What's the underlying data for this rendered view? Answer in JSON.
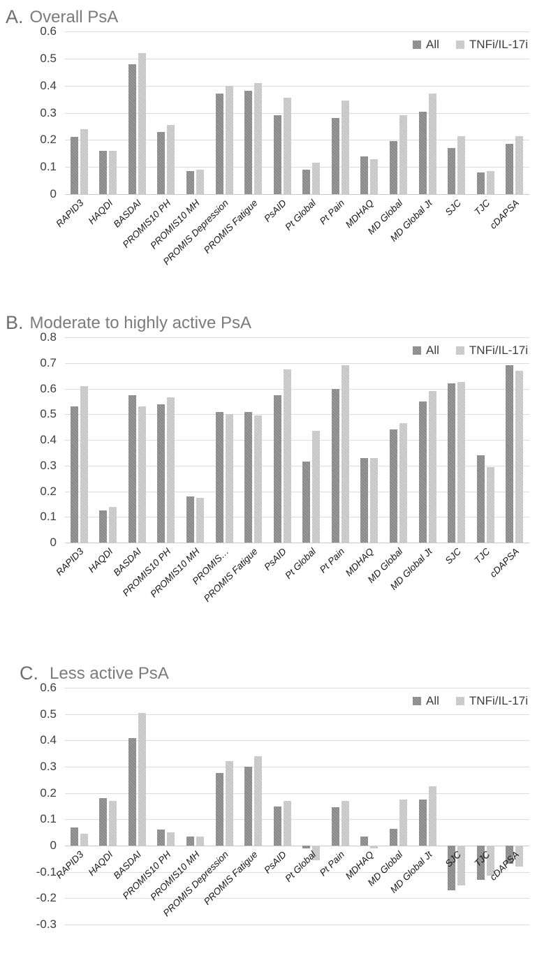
{
  "figure": {
    "background": "#ffffff",
    "bar_color_all": "#8c8c8c",
    "bar_color_tnfi": "#c5c5c5",
    "gridline_color": "#dcdcdc"
  },
  "legend": {
    "items": [
      {
        "label": "All",
        "swatch": "all"
      },
      {
        "label": "TNFi/IL-17i",
        "swatch": "tnfi"
      }
    ]
  },
  "chart_data": [
    {
      "type": "bar",
      "panel_label": "A.",
      "title": "Overall PsA",
      "ylim": [
        0,
        0.6
      ],
      "grid": true,
      "legend_position": "top-right",
      "yticks": [
        {
          "v": 0.6,
          "label": "0.6"
        },
        {
          "v": 0.5,
          "label": "0.5"
        },
        {
          "v": 0.4,
          "label": "0.4"
        },
        {
          "v": 0.3,
          "label": "0.3"
        },
        {
          "v": 0.2,
          "label": "0.2"
        },
        {
          "v": 0.1,
          "label": "0.1"
        },
        {
          "v": 0,
          "label": "0"
        }
      ],
      "categories": [
        "RAPID3",
        "HAQDI",
        "BASDAI",
        "PROMIS10 PH",
        "PROMIS10 MH",
        "PROMIS Depression",
        "PROMIS Fatigue",
        "PsAID",
        "Pt Global",
        "Pt Pain",
        "MDHAQ",
        "MD Global",
        "MD Global Jt",
        "SJC",
        "TJC",
        "cDAPSA"
      ],
      "series": [
        {
          "name": "All",
          "values": [
            0.21,
            0.16,
            0.48,
            0.23,
            0.085,
            0.37,
            0.38,
            0.29,
            0.09,
            0.28,
            0.14,
            0.195,
            0.305,
            0.17,
            0.08,
            0.185
          ]
        },
        {
          "name": "TNFi/IL-17i",
          "values": [
            0.24,
            0.16,
            0.52,
            0.255,
            0.09,
            0.4,
            0.41,
            0.355,
            0.115,
            0.345,
            0.13,
            0.29,
            0.37,
            0.215,
            0.085,
            0.215
          ]
        }
      ]
    },
    {
      "type": "bar",
      "panel_label": "B.",
      "title": "Moderate to highly active PsA",
      "ylim": [
        0,
        0.8
      ],
      "grid": true,
      "legend_position": "top-right",
      "yticks": [
        {
          "v": 0.8,
          "label": "0.8"
        },
        {
          "v": 0.7,
          "label": "0.7"
        },
        {
          "v": 0.6,
          "label": "0.6"
        },
        {
          "v": 0.5,
          "label": "0.5"
        },
        {
          "v": 0.4,
          "label": "0.4"
        },
        {
          "v": 0.3,
          "label": "0.3"
        },
        {
          "v": 0.2,
          "label": "0.2"
        },
        {
          "v": 0.1,
          "label": "0.1"
        },
        {
          "v": 0,
          "label": "0"
        }
      ],
      "categories": [
        "RAPID3",
        "HAQDI",
        "BASDAI",
        "PROMIS10 PH",
        "PROMIS10 MH",
        "PROMIS…",
        "PROMIS Fatigue",
        "PsAID",
        "Pt Global",
        "Pt Pain",
        "MDHAQ",
        "MD Global",
        "MD Global Jt",
        "SJC",
        "TJC",
        "cDAPSA"
      ],
      "series": [
        {
          "name": "All",
          "values": [
            0.53,
            0.125,
            0.575,
            0.54,
            0.18,
            0.51,
            0.51,
            0.575,
            0.315,
            0.6,
            0.33,
            0.44,
            0.55,
            0.62,
            0.34,
            0.69
          ]
        },
        {
          "name": "TNFi/IL-17i",
          "values": [
            0.61,
            0.14,
            0.53,
            0.565,
            0.175,
            0.5,
            0.495,
            0.675,
            0.435,
            0.69,
            0.33,
            0.465,
            0.59,
            0.625,
            0.295,
            0.67
          ]
        }
      ]
    },
    {
      "type": "bar",
      "panel_label": "C.",
      "title": "Less active PsA",
      "ylim": [
        -0.3,
        0.6
      ],
      "grid": true,
      "legend_position": "top-right",
      "yticks": [
        {
          "v": 0.6,
          "label": "0.6"
        },
        {
          "v": 0.5,
          "label": "0.5"
        },
        {
          "v": 0.4,
          "label": "0.4"
        },
        {
          "v": 0.3,
          "label": "0.3"
        },
        {
          "v": 0.2,
          "label": "0.2"
        },
        {
          "v": 0.1,
          "label": "0.1"
        },
        {
          "v": 0,
          "label": "0"
        },
        {
          "v": -0.1,
          "label": "-0.1"
        },
        {
          "v": -0.2,
          "label": "-0.2"
        },
        {
          "v": -0.3,
          "label": "-0.3"
        }
      ],
      "categories": [
        "RAPID3",
        "HAQDI",
        "BASDAI",
        "PROMIS10 PH",
        "PROMIS10 MH",
        "PROMIS Depression",
        "PROMIS Fatigue",
        "PsAID",
        "Pt Global",
        "Pt Pain",
        "MDHAQ",
        "MD Global",
        "MD Global Jt",
        "SJC",
        "TJC",
        "cDAPSA"
      ],
      "series": [
        {
          "name": "All",
          "values": [
            0.07,
            0.18,
            0.41,
            0.06,
            0.035,
            0.275,
            0.3,
            0.15,
            -0.01,
            0.145,
            0.035,
            0.065,
            0.175,
            -0.17,
            -0.13,
            -0.07
          ]
        },
        {
          "name": "TNFi/IL-17i",
          "values": [
            0.045,
            0.17,
            0.505,
            0.05,
            0.035,
            0.32,
            0.34,
            0.17,
            -0.055,
            0.17,
            -0.01,
            0.175,
            0.225,
            -0.15,
            -0.115,
            -0.08
          ]
        }
      ]
    }
  ]
}
